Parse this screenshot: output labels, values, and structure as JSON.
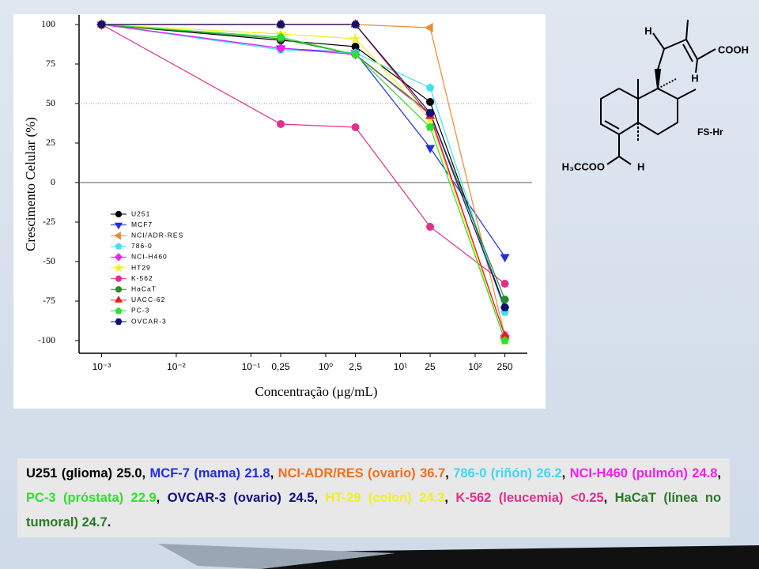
{
  "chart_data": {
    "type": "line",
    "x_scale": "log",
    "y_label": "Crescimento Celular (%)",
    "x_label": "Concentração (μg/mL)",
    "x": [
      0.001,
      0.25,
      2.5,
      25,
      250
    ],
    "xlim": [
      0.0005,
      500
    ],
    "ylim": [
      -108,
      106
    ],
    "xticks": [
      {
        "value": 0.001,
        "label": "10⁻³"
      },
      {
        "value": 0.01,
        "label": "10⁻²"
      },
      {
        "value": 0.1,
        "label": "10⁻¹"
      },
      {
        "value": 0.25,
        "label": "0,25"
      },
      {
        "value": 1,
        "label": "10⁰"
      },
      {
        "value": 2.5,
        "label": "2,5"
      },
      {
        "value": 10,
        "label": "10¹"
      },
      {
        "value": 25,
        "label": "25"
      },
      {
        "value": 100,
        "label": "10²"
      },
      {
        "value": 250,
        "label": "250"
      }
    ],
    "yticks": [
      100,
      75,
      50,
      25,
      0,
      -25,
      -50,
      -75,
      -100
    ],
    "reference_lines": [
      {
        "y": 50,
        "style": "dotted"
      },
      {
        "y": 0,
        "style": "solid"
      }
    ],
    "legend": "lower-left",
    "series": [
      {
        "name": "U251",
        "color": "#000000",
        "marker": "circle",
        "values": [
          100,
          90,
          86,
          51,
          -79
        ]
      },
      {
        "name": "MCF7",
        "color": "#1f2fe0",
        "marker": "triangle-down",
        "values": [
          100,
          85,
          82,
          22,
          -47
        ]
      },
      {
        "name": "NCI/ADR-RES",
        "color": "#f08a30",
        "marker": "triangle-left",
        "values": [
          100,
          100,
          100,
          98,
          -97
        ]
      },
      {
        "name": "786-0",
        "color": "#40e0f0",
        "marker": "pentagon",
        "values": [
          100,
          84,
          82,
          60,
          -82
        ]
      },
      {
        "name": "NCI-H460",
        "color": "#f020f0",
        "marker": "diamond",
        "values": [
          100,
          85,
          81,
          43,
          -97
        ]
      },
      {
        "name": "HT29",
        "color": "#f0f020",
        "marker": "star",
        "values": [
          100,
          94,
          91,
          40,
          -100
        ]
      },
      {
        "name": "K-562",
        "color": "#e0308a",
        "marker": "circle",
        "values": [
          100,
          37,
          35,
          -28,
          -64
        ]
      },
      {
        "name": "HaCaT",
        "color": "#2a8a2a",
        "marker": "circle",
        "values": [
          100,
          91,
          81,
          44,
          -74
        ]
      },
      {
        "name": "UACC-62",
        "color": "#e02020",
        "marker": "triangle-up",
        "values": [
          100,
          100,
          100,
          42,
          -97
        ]
      },
      {
        "name": "PC-3",
        "color": "#30e030",
        "marker": "pentagon",
        "values": [
          100,
          92,
          81,
          35,
          -100
        ]
      },
      {
        "name": "OVCAR-3",
        "color": "#101070",
        "marker": "hexagon",
        "values": [
          100,
          100,
          100,
          44,
          -79
        ]
      }
    ]
  },
  "structure": {
    "labels": [
      "H",
      "COOH",
      "H",
      "FS-Hr",
      "H₃CCOO",
      "H"
    ]
  },
  "caption": [
    {
      "text": "U251 (glioma) 25.0",
      "color": "#000000"
    },
    {
      "text": ", ",
      "color": "#000000"
    },
    {
      "text": "MCF-7 (mama) 21.8",
      "color": "#1f2fe0"
    },
    {
      "text": ", ",
      "color": "#000000"
    },
    {
      "text": "NCI-ADR/RES (ovario) 36.7",
      "color": "#f07020"
    },
    {
      "text": ", ",
      "color": "#000000"
    },
    {
      "text": "786-0 (riñón) 26.2",
      "color": "#40d8f0"
    },
    {
      "text": ", ",
      "color": "#000000"
    },
    {
      "text": "NCI-H460 (pulmón) 24.8",
      "color": "#f020f0"
    },
    {
      "text": ", ",
      "color": "#000000"
    },
    {
      "text": "PC-3 (próstata) 22.9",
      "color": "#30e030"
    },
    {
      "text": ", ",
      "color": "#000000"
    },
    {
      "text": "OVCAR-3 (ovario) 24.5",
      "color": "#101080"
    },
    {
      "text": ", ",
      "color": "#000000"
    },
    {
      "text": "HT-29 (colon) 24.3",
      "color": "#f0f020"
    },
    {
      "text": ", ",
      "color": "#000000"
    },
    {
      "text": "K-562 (leucemia) <0.25",
      "color": "#e0308a"
    },
    {
      "text": ", ",
      "color": "#000000"
    },
    {
      "text": "HaCaT (línea no tumoral) 24.7",
      "color": "#2a7a2a"
    },
    {
      "text": ".",
      "color": "#000000"
    }
  ]
}
